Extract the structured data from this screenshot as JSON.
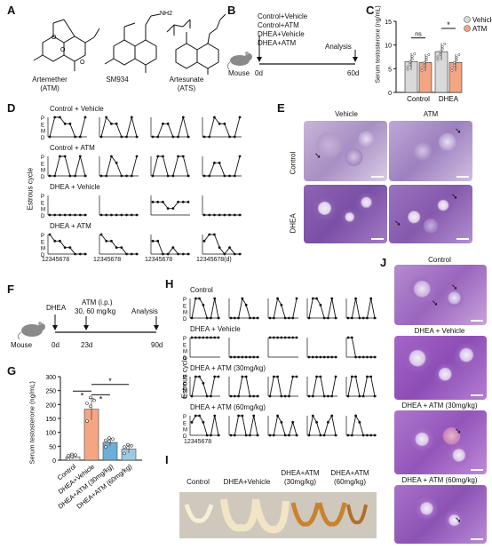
{
  "panels": {
    "A": "A",
    "B": "B",
    "C": "C",
    "D": "D",
    "E": "E",
    "F": "F",
    "G": "G",
    "H": "H",
    "I": "I",
    "J": "J"
  },
  "A": {
    "compounds": [
      {
        "name": "Artemether",
        "abbr": "(ATM)"
      },
      {
        "name": "SM934",
        "abbr": ""
      },
      {
        "name": "Artesunate",
        "abbr": "(ATS)"
      }
    ],
    "nh2": "NH2"
  },
  "B": {
    "groups": [
      "Control+Vehicle",
      "Control+ATM",
      "DHEA+Vehicle",
      "DHEA+ATM"
    ],
    "analysis": "Analysis",
    "mouse": "Mouse",
    "start": "0d",
    "end": "60d"
  },
  "C": {
    "chart_data": {
      "type": "bar",
      "categories": [
        "Control",
        "DHEA"
      ],
      "series": [
        {
          "name": "Vehicle",
          "values": [
            6.5,
            8.6
          ],
          "color": "#d9d9d9"
        },
        {
          "name": "ATM",
          "values": [
            6.3,
            6.3
          ],
          "color": "#f4a582"
        }
      ],
      "ylabel": "Serum testosterone (ng/mL)",
      "yticks": [
        0,
        5,
        10,
        15
      ],
      "ylim": [
        0,
        15
      ],
      "annotations": [
        "ns",
        "*"
      ]
    }
  },
  "D": {
    "ylabel": "Estrous cycle",
    "stages": [
      "P",
      "E",
      "M",
      "D"
    ],
    "days": "12345678",
    "days_unit": "12345678(d)",
    "groups": [
      {
        "title": "Control + Vehicle",
        "traces": [
          [
            3,
            0,
            0,
            1,
            1,
            3,
            3,
            0
          ],
          [
            3,
            0,
            1,
            1,
            3,
            3,
            0,
            3
          ],
          [
            3,
            3,
            1,
            1,
            3,
            3,
            0,
            3
          ],
          [
            3,
            3,
            0,
            1,
            1,
            3,
            3,
            0
          ]
        ]
      },
      {
        "title": "Control + ATM",
        "traces": [
          [
            3,
            3,
            0,
            0,
            3,
            3,
            0,
            3
          ],
          [
            3,
            3,
            0,
            1,
            3,
            3,
            3,
            0
          ],
          [
            3,
            0,
            0,
            3,
            3,
            0,
            0,
            3
          ],
          [
            3,
            3,
            1,
            1,
            3,
            3,
            3,
            0
          ]
        ]
      },
      {
        "title": "DHEA + Vehicle",
        "traces": [
          [
            3,
            3,
            3,
            3,
            3,
            3,
            3,
            3
          ],
          [
            3,
            3,
            3,
            3,
            3,
            3,
            3,
            3
          ],
          [
            1,
            1,
            1,
            2,
            2,
            1,
            1,
            1
          ],
          [
            3,
            3,
            3,
            3,
            3,
            3,
            3,
            3
          ]
        ]
      },
      {
        "title": "DHEA + ATM",
        "traces": [
          [
            0,
            1,
            1,
            2,
            2,
            3,
            3,
            3
          ],
          [
            0,
            1,
            1,
            2,
            2,
            3,
            3,
            3
          ],
          [
            1,
            1,
            3,
            3,
            2,
            3,
            3,
            3
          ],
          [
            1,
            0,
            0,
            2,
            3,
            2,
            3,
            3
          ]
        ]
      }
    ]
  },
  "E": {
    "cols": [
      "Vehicle",
      "ATM"
    ],
    "rows": [
      "Control",
      "DHEA"
    ]
  },
  "F": {
    "steps": [
      "DHEA",
      "ATM (i.p.)",
      "30, 60 mg/kg",
      "Analysis"
    ],
    "mouse": "Mouse",
    "days": [
      "0d",
      "23d",
      "90d"
    ]
  },
  "G": {
    "chart_data": {
      "type": "bar",
      "categories": [
        "Control",
        "DHEA+Vehicle",
        "DHEA+ATM (30mg/kg)",
        "DHEA+ATM (60mg/kg)"
      ],
      "values": [
        12,
        183,
        64,
        40
      ],
      "errors": [
        8,
        38,
        14,
        14
      ],
      "colors": [
        "#e0e0e0",
        "#f4a582",
        "#6baed6",
        "#9ecae1"
      ],
      "ylabel": "Serum testosterone (ng/mL)",
      "yticks": [
        0,
        50,
        100,
        150,
        200,
        250,
        300
      ],
      "ylim": [
        0,
        300
      ],
      "annotations": [
        "*",
        "*",
        "*"
      ]
    }
  },
  "H": {
    "ylabel": "Estrous cycle",
    "stages": [
      "P",
      "E",
      "M",
      "D"
    ],
    "days": "12345678",
    "groups": [
      {
        "title": "Control",
        "traces": [
          [
            3,
            0,
            0,
            1,
            3,
            3,
            0,
            3
          ],
          [
            3,
            3,
            3,
            0,
            1,
            3,
            3,
            3
          ],
          [
            3,
            3,
            0,
            1,
            3,
            3,
            3,
            0
          ],
          [
            3,
            0,
            0,
            1,
            3,
            3,
            0,
            3
          ],
          [
            3,
            3,
            0,
            3,
            3,
            3,
            0,
            3
          ]
        ]
      },
      {
        "title": "DHEA + Vehicle",
        "traces": [
          [
            0,
            0,
            0,
            0,
            0,
            0,
            0,
            0
          ],
          [
            3,
            3,
            3,
            3,
            3,
            3,
            3,
            3
          ],
          [
            0,
            0,
            0,
            0,
            0,
            0,
            0,
            0
          ],
          [
            3,
            3,
            3,
            3,
            3,
            3,
            3,
            3
          ],
          [
            0,
            0,
            3,
            3,
            3,
            3,
            3,
            3
          ]
        ]
      },
      {
        "title": "DHEA + ATM (30mg/kg)",
        "traces": [
          [
            3,
            0,
            0,
            1,
            3,
            3,
            0,
            0
          ],
          [
            3,
            3,
            3,
            0,
            0,
            3,
            3,
            3
          ],
          [
            3,
            0,
            0,
            3,
            3,
            3,
            0,
            0
          ],
          [
            3,
            3,
            0,
            0,
            3,
            3,
            3,
            0
          ],
          [
            3,
            0,
            0,
            3,
            3,
            0,
            0,
            3
          ]
        ]
      },
      {
        "title": "DHEA + ATM (60mg/kg)",
        "traces": [
          [
            1,
            0,
            0,
            1,
            3,
            3,
            0,
            3
          ],
          [
            3,
            3,
            0,
            0,
            3,
            3,
            0,
            3
          ],
          [
            3,
            3,
            0,
            1,
            3,
            3,
            1,
            3
          ],
          [
            3,
            0,
            1,
            3,
            3,
            1,
            0,
            3
          ],
          [
            3,
            3,
            0,
            1,
            3,
            3,
            3,
            3
          ]
        ]
      }
    ]
  },
  "I": {
    "labels": [
      "Control",
      "DHEA+Vehicle",
      "DHEA+ATM\n(30mg/kg)",
      "DHEA+ATM\n(60mg/kg)"
    ]
  },
  "J": {
    "labels": [
      "Control",
      "DHEA + Vehicle",
      "DHEA + ATM (30mg/kg)",
      "DHEA + ATM (60mg/kg)"
    ]
  }
}
